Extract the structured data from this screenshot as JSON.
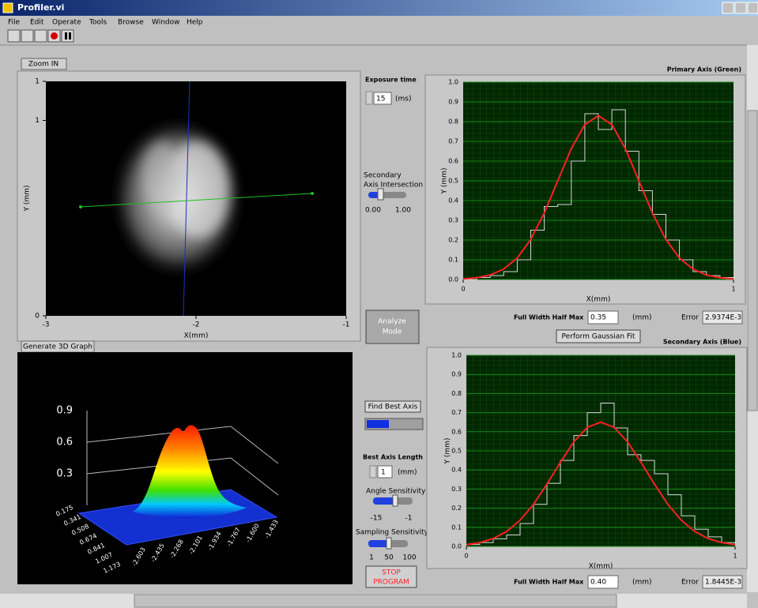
{
  "window": {
    "title": "Profiler.vi",
    "menu": [
      "File",
      "Edit",
      "Operate",
      "Tools",
      "Browse",
      "Window",
      "Help"
    ]
  },
  "image_panel": {
    "button": "Zoom IN",
    "x_label": "X(mm)",
    "y_label": "Y (mm)",
    "xlim": [
      -3,
      -1
    ],
    "xticks": [
      -3,
      -2,
      -1
    ],
    "ylim": [
      0,
      1.2
    ],
    "yticks": [
      0,
      1,
      {
        "value": 1.2,
        "label": "1"
      }
    ]
  },
  "controls": {
    "exposure_label": "Exposure time",
    "exposure_value": "15",
    "exposure_unit": "(ms)",
    "intersection_label": [
      "Secondary",
      "Axis Intersection"
    ],
    "intersection_ticks": [
      "0.00",
      "1.00"
    ],
    "analyze_button": [
      "Analyze",
      "Mode"
    ],
    "find_axis_button": "Find Best Axis",
    "axis_length_label": "Best Axis Length",
    "axis_length_value": "1",
    "axis_length_unit": "(mm)",
    "angle_label": "Angle Sensitivity",
    "angle_ticks": [
      "-15",
      "-1"
    ],
    "sampling_label": "Sampling Sensitivity",
    "sampling_ticks": [
      "1",
      "50",
      "100"
    ],
    "stop_button": [
      "STOP",
      "PROGRAM"
    ],
    "fit_button": "Perform Gaussian Fit"
  },
  "graph3d": {
    "button": "Generate 3D Graph",
    "z_labels": [
      "0.9",
      "0.6",
      "0.3"
    ],
    "y_labels": [
      "0.175",
      "0.341",
      "0.508",
      "0.674",
      "0.841",
      "1.007",
      "1.173"
    ],
    "x_labels": [
      "-2.603",
      "-2.435",
      "-2.268",
      "-2.101",
      "-1.934",
      "-1.767",
      "-1.600",
      "-1.433"
    ]
  },
  "chart_data": [
    {
      "type": "line",
      "title": "Primary Axis (Green)",
      "x_label": "X(mm)",
      "y_label": "Y (mm)",
      "xlim": [
        0,
        1
      ],
      "xticks": [
        0,
        1
      ],
      "ylim": [
        0,
        1
      ],
      "yticks": [
        {
          "value": 0,
          "label": "0.0"
        },
        0.1,
        0.2,
        0.3,
        0.4,
        0.5,
        0.6,
        0.7,
        0.8,
        0.9,
        {
          "value": 1,
          "label": "1.0"
        }
      ],
      "grid": true,
      "x": [
        0,
        0.05,
        0.1,
        0.15,
        0.2,
        0.25,
        0.3,
        0.35,
        0.4,
        0.45,
        0.5,
        0.55,
        0.6,
        0.65,
        0.7,
        0.75,
        0.8,
        0.85,
        0.9,
        0.95,
        1
      ],
      "series": [
        {
          "color": "#d8d8d8",
          "step": true,
          "values": [
            0,
            0.01,
            0.02,
            0.04,
            0.1,
            0.25,
            0.37,
            0.38,
            0.6,
            0.84,
            0.76,
            0.86,
            0.65,
            0.45,
            0.33,
            0.2,
            0.1,
            0.04,
            0.02,
            0.01,
            0
          ]
        },
        {
          "color": "#ff2020",
          "step": false,
          "values": [
            0.003,
            0.009,
            0.023,
            0.053,
            0.109,
            0.203,
            0.337,
            0.5,
            0.663,
            0.785,
            0.83,
            0.785,
            0.663,
            0.5,
            0.337,
            0.203,
            0.109,
            0.053,
            0.023,
            0.009,
            0.003
          ]
        }
      ],
      "fwhm_label": "Full Width Half Max",
      "fwhm_value": "0.35",
      "fwhm_unit": "(mm)",
      "error_label": "Error",
      "error_value": "2.9374E-3"
    },
    {
      "type": "line",
      "title": "Secondary Axis (Blue)",
      "x_label": "X(mm)",
      "y_label": "Y (mm)",
      "xlim": [
        0,
        1
      ],
      "xticks": [
        0,
        1
      ],
      "ylim": [
        0,
        1
      ],
      "yticks": [
        {
          "value": 0,
          "label": "0.0"
        },
        0.1,
        0.2,
        0.3,
        0.4,
        0.5,
        0.6,
        0.7,
        0.8,
        0.9,
        {
          "value": 1,
          "label": "1.0"
        }
      ],
      "grid": true,
      "x": [
        0,
        0.05,
        0.1,
        0.15,
        0.2,
        0.25,
        0.3,
        0.35,
        0.4,
        0.45,
        0.5,
        0.55,
        0.6,
        0.65,
        0.7,
        0.75,
        0.8,
        0.85,
        0.9,
        0.95,
        1
      ],
      "series": [
        {
          "color": "#d8d8d8",
          "step": true,
          "values": [
            0.01,
            0.02,
            0.04,
            0.06,
            0.12,
            0.22,
            0.33,
            0.45,
            0.58,
            0.7,
            0.75,
            0.62,
            0.48,
            0.45,
            0.38,
            0.27,
            0.16,
            0.09,
            0.05,
            0.02,
            0.01
          ]
        },
        {
          "color": "#ff2020",
          "step": false,
          "values": [
            0.009,
            0.02,
            0.041,
            0.078,
            0.137,
            0.22,
            0.326,
            0.44,
            0.547,
            0.623,
            0.65,
            0.623,
            0.547,
            0.44,
            0.326,
            0.22,
            0.137,
            0.078,
            0.041,
            0.02,
            0.009
          ]
        }
      ],
      "fwhm_label": "Full Width Half Max",
      "fwhm_value": "0.40",
      "fwhm_unit": "(mm)",
      "error_label": "Error",
      "error_value": "1.8445E-3"
    }
  ]
}
